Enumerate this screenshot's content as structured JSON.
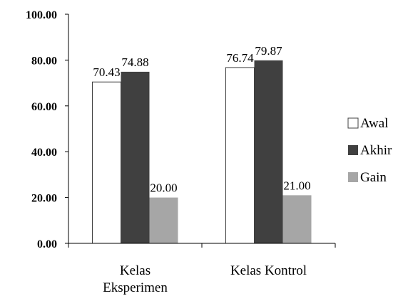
{
  "chart_data": {
    "type": "bar",
    "categories": [
      [
        "Kelas",
        "Eksperimen"
      ],
      [
        "Kelas Kontrol"
      ]
    ],
    "series": [
      {
        "name": "Awal",
        "values": [
          70.43,
          76.74
        ],
        "color": "#ffffff",
        "labels": [
          "70.43",
          "76.74"
        ]
      },
      {
        "name": "Akhir",
        "values": [
          74.88,
          79.87
        ],
        "color": "#404040",
        "labels": [
          "74.88",
          "79.87"
        ]
      },
      {
        "name": "Gain",
        "values": [
          20.0,
          21.0
        ],
        "color": "#a6a6a6",
        "labels": [
          "20.00",
          "21.00"
        ]
      }
    ],
    "y_ticks": [
      "0.00",
      "20.00",
      "40.00",
      "60.00",
      "80.00",
      "100.00"
    ],
    "ylim": [
      0,
      100
    ],
    "legend_position": "right",
    "grid": false
  }
}
